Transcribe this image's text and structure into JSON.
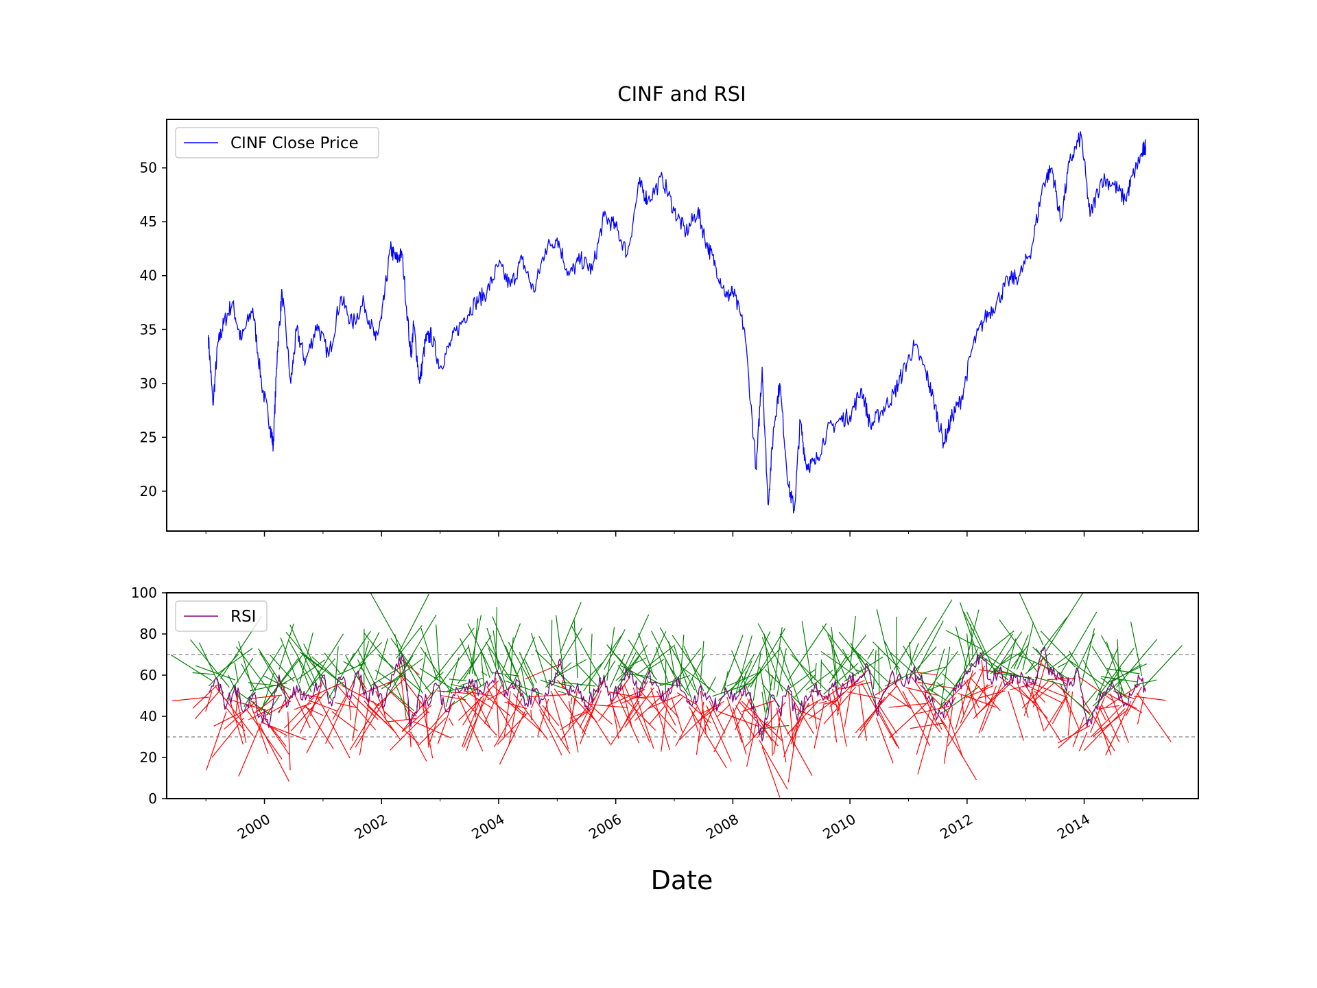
{
  "chart_data": [
    {
      "type": "line",
      "title": "CINF and RSI",
      "ylabel": "",
      "xlim": [
        1998.33,
        2015.95
      ],
      "ylim": [
        16.3,
        54.5
      ],
      "yticks": [
        "20",
        "25",
        "30",
        "35",
        "40",
        "45",
        "50"
      ],
      "grid": false,
      "legend_position": "upper-left",
      "series": [
        {
          "name": "CINF Close Price",
          "color": "#0000ff",
          "x": [
            1999.04,
            1999.12,
            1999.2,
            1999.3,
            1999.45,
            1999.6,
            1999.8,
            1999.95,
            2000.1,
            2000.15,
            2000.22,
            2000.3,
            2000.45,
            2000.55,
            2000.7,
            2000.9,
            2001.1,
            2001.3,
            2001.5,
            2001.7,
            2001.9,
            2002.0,
            2002.15,
            2002.25,
            2002.35,
            2002.5,
            2002.55,
            2002.65,
            2002.75,
            2002.85,
            2003.0,
            2003.2,
            2003.4,
            2003.6,
            2003.8,
            2004.0,
            2004.2,
            2004.4,
            2004.6,
            2004.8,
            2005.0,
            2005.2,
            2005.4,
            2005.6,
            2005.8,
            2006.0,
            2006.2,
            2006.4,
            2006.55,
            2006.8,
            2007.0,
            2007.2,
            2007.4,
            2007.55,
            2007.7,
            2007.9,
            2008.0,
            2008.2,
            2008.4,
            2008.5,
            2008.6,
            2008.7,
            2008.8,
            2008.95,
            2009.05,
            2009.15,
            2009.25,
            2009.4,
            2009.6,
            2009.8,
            2010.0,
            2010.2,
            2010.35,
            2010.55,
            2010.75,
            2010.9,
            2011.1,
            2011.3,
            2011.45,
            2011.6,
            2011.75,
            2011.9,
            2012.1,
            2012.3,
            2012.5,
            2012.7,
            2012.9,
            2013.1,
            2013.3,
            2013.45,
            2013.6,
            2013.75,
            2013.95,
            2014.1,
            2014.3,
            2014.5,
            2014.7,
            2014.85,
            2015.0,
            2015.05
          ],
          "values": [
            34.5,
            28.0,
            33.5,
            35.5,
            37.5,
            34.0,
            37.0,
            30.0,
            26.0,
            24.2,
            33.0,
            38.5,
            30.0,
            35.0,
            32.0,
            35.5,
            32.5,
            38.0,
            35.5,
            37.5,
            34.0,
            36.0,
            42.5,
            41.5,
            42.0,
            32.5,
            35.5,
            30.0,
            34.0,
            34.5,
            31.5,
            34.0,
            36.0,
            37.5,
            38.5,
            41.0,
            39.0,
            41.5,
            38.5,
            42.5,
            43.5,
            40.0,
            41.5,
            40.5,
            45.5,
            44.5,
            42.0,
            48.5,
            47.0,
            49.0,
            46.0,
            44.0,
            46.0,
            43.0,
            41.0,
            38.0,
            38.5,
            35.0,
            22.0,
            31.5,
            18.8,
            26.0,
            30.0,
            20.5,
            18.2,
            26.5,
            22.5,
            22.5,
            25.5,
            26.5,
            27.0,
            29.5,
            26.0,
            27.5,
            29.0,
            31.0,
            33.5,
            31.0,
            28.0,
            24.5,
            27.0,
            28.5,
            33.5,
            36.0,
            37.5,
            39.5,
            40.0,
            42.5,
            48.5,
            50.0,
            45.0,
            50.5,
            53.0,
            45.5,
            49.0,
            48.5,
            47.0,
            49.5,
            51.5,
            52.0
          ]
        }
      ]
    },
    {
      "type": "line",
      "title": "",
      "xlabel": "Date",
      "ylabel": "",
      "xlim": [
        1998.33,
        2015.95
      ],
      "ylim": [
        0,
        100
      ],
      "yticks": [
        "0",
        "20",
        "40",
        "60",
        "80",
        "100"
      ],
      "xticks": [
        {
          "value": 2000,
          "label": "2000"
        },
        {
          "value": 2002,
          "label": "2002"
        },
        {
          "value": 2004,
          "label": "2004"
        },
        {
          "value": 2006,
          "label": "2006"
        },
        {
          "value": 2008,
          "label": "2008"
        },
        {
          "value": 2010,
          "label": "2010"
        },
        {
          "value": 2012,
          "label": "2012"
        },
        {
          "value": 2014,
          "label": "2014"
        }
      ],
      "reference_lines": [
        70,
        30
      ],
      "grid": false,
      "legend_position": "upper-left",
      "series": [
        {
          "name": "RSI",
          "color": "#800080",
          "x": [
            1999.05,
            1999.2,
            1999.35,
            1999.5,
            1999.65,
            1999.8,
            1999.95,
            2000.1,
            2000.25,
            2000.4,
            2000.55,
            2000.7,
            2000.85,
            2001.0,
            2001.15,
            2001.3,
            2001.45,
            2001.6,
            2001.75,
            2001.9,
            2002.05,
            2002.2,
            2002.35,
            2002.5,
            2002.65,
            2002.8,
            2002.95,
            2003.1,
            2003.25,
            2003.4,
            2003.55,
            2003.7,
            2003.85,
            2004.0,
            2004.15,
            2004.3,
            2004.45,
            2004.6,
            2004.75,
            2004.9,
            2005.05,
            2005.2,
            2005.35,
            2005.5,
            2005.65,
            2005.8,
            2005.95,
            2006.1,
            2006.25,
            2006.4,
            2006.55,
            2006.7,
            2006.85,
            2007.0,
            2007.15,
            2007.3,
            2007.45,
            2007.6,
            2007.75,
            2007.9,
            2008.05,
            2008.2,
            2008.35,
            2008.5,
            2008.65,
            2008.8,
            2008.95,
            2009.1,
            2009.25,
            2009.4,
            2009.55,
            2009.7,
            2009.85,
            2010.0,
            2010.15,
            2010.3,
            2010.45,
            2010.6,
            2010.75,
            2010.9,
            2011.05,
            2011.2,
            2011.35,
            2011.5,
            2011.65,
            2011.8,
            2011.95,
            2012.1,
            2012.25,
            2012.4,
            2012.55,
            2012.7,
            2012.85,
            2013.0,
            2013.15,
            2013.3,
            2013.45,
            2013.6,
            2013.75,
            2013.9,
            2014.05,
            2014.2,
            2014.35,
            2014.5,
            2014.65,
            2014.8,
            2014.95,
            2015.05
          ],
          "values": [
            52,
            58,
            45,
            55,
            42,
            50,
            40,
            38,
            60,
            45,
            55,
            48,
            52,
            60,
            45,
            58,
            50,
            62,
            48,
            55,
            45,
            60,
            70,
            35,
            50,
            45,
            55,
            42,
            50,
            55,
            58,
            52,
            56,
            60,
            50,
            58,
            45,
            52,
            48,
            55,
            68,
            50,
            56,
            45,
            52,
            60,
            48,
            58,
            62,
            50,
            60,
            55,
            48,
            58,
            52,
            45,
            55,
            50,
            45,
            52,
            48,
            55,
            45,
            28,
            50,
            42,
            55,
            38,
            50,
            55,
            48,
            56,
            52,
            60,
            58,
            65,
            42,
            52,
            60,
            55,
            62,
            58,
            50,
            40,
            45,
            52,
            60,
            65,
            70,
            58,
            62,
            55,
            60,
            58,
            55,
            72,
            60,
            58,
            55,
            62,
            35,
            45,
            52,
            55,
            48,
            50,
            58,
            52
          ]
        }
      ]
    }
  ]
}
